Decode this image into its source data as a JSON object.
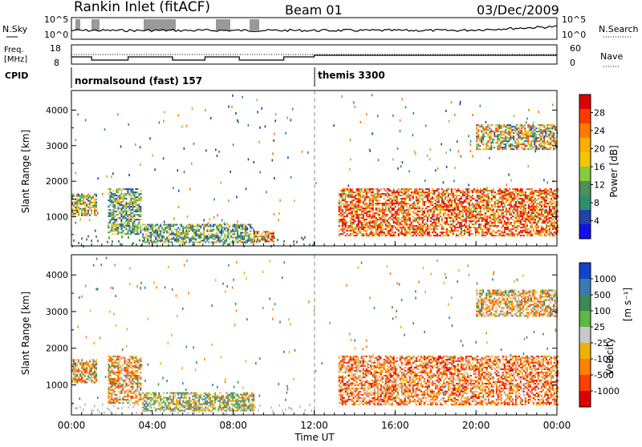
{
  "header": {
    "title": "Rankin Inlet (fitACF)",
    "beam": "Beam 01",
    "date": "03/Dec/2009"
  },
  "noise_panel": {
    "left_label": "N.Sky",
    "left_ticks": [
      "10^5",
      "10^0"
    ],
    "right_label": "N.Search",
    "right_ticks": [
      "10^5",
      "10^0"
    ]
  },
  "freq_panel": {
    "left_label_line1": "Freq.",
    "left_label_line2": "[MHz]",
    "left_ticks": [
      "18",
      "8"
    ],
    "right_label": "Nave",
    "right_ticks": [
      "60",
      "0"
    ]
  },
  "cpid_panel": {
    "label": "CPID",
    "modes": [
      {
        "name": "normalsound (fast) 157",
        "start_hour": 0
      },
      {
        "name": "themis 3300",
        "start_hour": 12
      }
    ]
  },
  "range_axis": {
    "label": "Slant Range [km]",
    "ticks": [
      "1000",
      "2000",
      "3000",
      "4000"
    ],
    "tick_values": [
      1000,
      2000,
      3000,
      4000
    ]
  },
  "time_axis": {
    "label": "Time UT",
    "ticks": [
      "00:00",
      "04:00",
      "08:00",
      "12:00",
      "16:00",
      "20:00",
      "00:00"
    ],
    "tick_hours": [
      0,
      4,
      8,
      12,
      16,
      20,
      24
    ]
  },
  "power_colorbar": {
    "label": "Power [dB]",
    "ticks": [
      "28",
      "24",
      "20",
      "16",
      "12",
      "8",
      "4"
    ],
    "colors": [
      "#e00000",
      "#ff3a00",
      "#ff7a00",
      "#ffae00",
      "#f3c700",
      "#84cc3a",
      "#4f8f5c",
      "#2c9070",
      "#2244aa",
      "#1111ee"
    ]
  },
  "velocity_colorbar": {
    "label": "Velocity",
    "unit": "[m s⁻¹]",
    "ticks": [
      "1000",
      "500",
      "100",
      "25",
      "-25",
      "-100",
      "-500",
      "-1000"
    ],
    "colors": [
      "#1144cc",
      "#3a7ab0",
      "#3c8a55",
      "#5fb840",
      "#c8c8c8",
      "#f0b000",
      "#ff8000",
      "#ff4000",
      "#e00000"
    ]
  },
  "chart_data": {
    "type": "heatmap",
    "x_range_hours": [
      0,
      24
    ],
    "y_range_km": [
      180,
      4550
    ],
    "power_backscatter_regions": [
      {
        "t0": 0.0,
        "t1": 1.2,
        "r0": 1050,
        "r1": 1650,
        "level": "mid"
      },
      {
        "t0": 1.8,
        "t1": 3.4,
        "r0": 500,
        "r1": 1800,
        "level": "low"
      },
      {
        "t0": 3.5,
        "t1": 9.0,
        "r0": 300,
        "r1": 800,
        "level": "low"
      },
      {
        "t0": 9.0,
        "t1": 10.0,
        "r0": 300,
        "r1": 600,
        "level": "high"
      },
      {
        "t0": 13.2,
        "t1": 24.0,
        "r0": 450,
        "r1": 1800,
        "level": "high"
      },
      {
        "t0": 20.0,
        "t1": 24.0,
        "r0": 2900,
        "r1": 3600,
        "level": "mid"
      }
    ],
    "velocity_backscatter_regions": [
      {
        "t0": 0.0,
        "t1": 1.2,
        "r0": 1050,
        "r1": 1700,
        "level": "-100"
      },
      {
        "t0": 1.8,
        "t1": 3.4,
        "r0": 500,
        "r1": 1800,
        "level": "-100"
      },
      {
        "t0": 3.5,
        "t1": 9.0,
        "r0": 300,
        "r1": 800,
        "level": "100"
      },
      {
        "t0": 13.2,
        "t1": 24.0,
        "r0": 450,
        "r1": 1800,
        "level": "-500"
      },
      {
        "t0": 20.0,
        "t1": 24.0,
        "r0": 2900,
        "r1": 3600,
        "level": "-100"
      }
    ]
  }
}
